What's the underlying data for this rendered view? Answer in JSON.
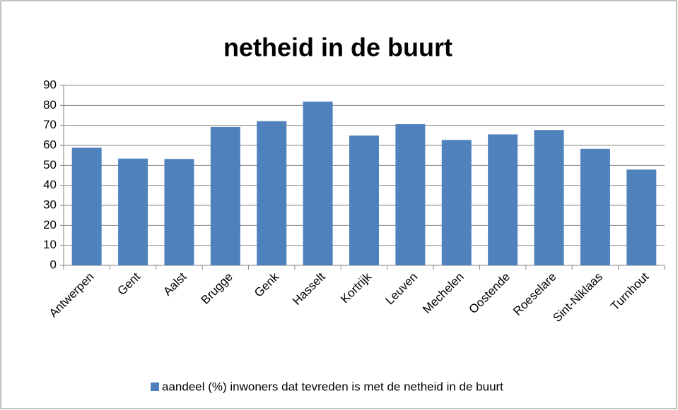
{
  "chart_data": {
    "type": "bar",
    "title": "netheid in de buurt",
    "categories": [
      "Antwerpen",
      "Gent",
      "Aalst",
      "Brugge",
      "Genk",
      "Hasselt",
      "Kortrijk",
      "Leuven",
      "Mechelen",
      "Oostende",
      "Roeselare",
      "Sint-Niklaas",
      "Turnhout"
    ],
    "series": [
      {
        "name": "aandeel (%) inwoners dat tevreden is met de netheid in de buurt",
        "color": "#4f81bd",
        "values": [
          58.8,
          53.4,
          53.2,
          69.2,
          72.1,
          81.9,
          64.9,
          70.6,
          62.7,
          65.5,
          67.7,
          58.3,
          47.9
        ]
      }
    ],
    "ylim": [
      0,
      90
    ],
    "yticks": [
      0,
      10,
      20,
      30,
      40,
      50,
      60,
      70,
      80,
      90
    ],
    "grid": true,
    "legend": "bottom"
  }
}
